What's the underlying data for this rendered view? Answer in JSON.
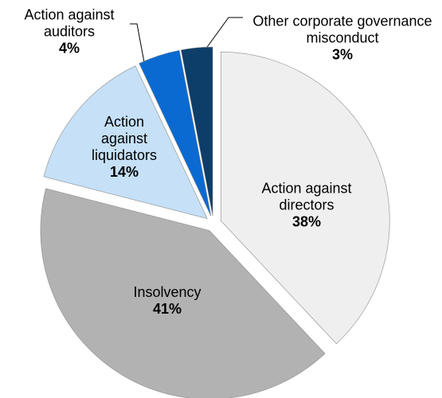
{
  "chart_data": {
    "type": "pie",
    "categories": [
      "Action against directors",
      "Insolvency",
      "Action against liquidators",
      "Action against auditors",
      "Other corporate governance misconduct"
    ],
    "values": [
      38,
      41,
      14,
      4,
      3
    ],
    "value_labels": [
      "38%",
      "41%",
      "14%",
      "4%",
      "3%"
    ],
    "colors": [
      "#efefef",
      "#b2b2b2",
      "#c5e0f7",
      "#0a6ad1",
      "#0d3e6a"
    ]
  }
}
